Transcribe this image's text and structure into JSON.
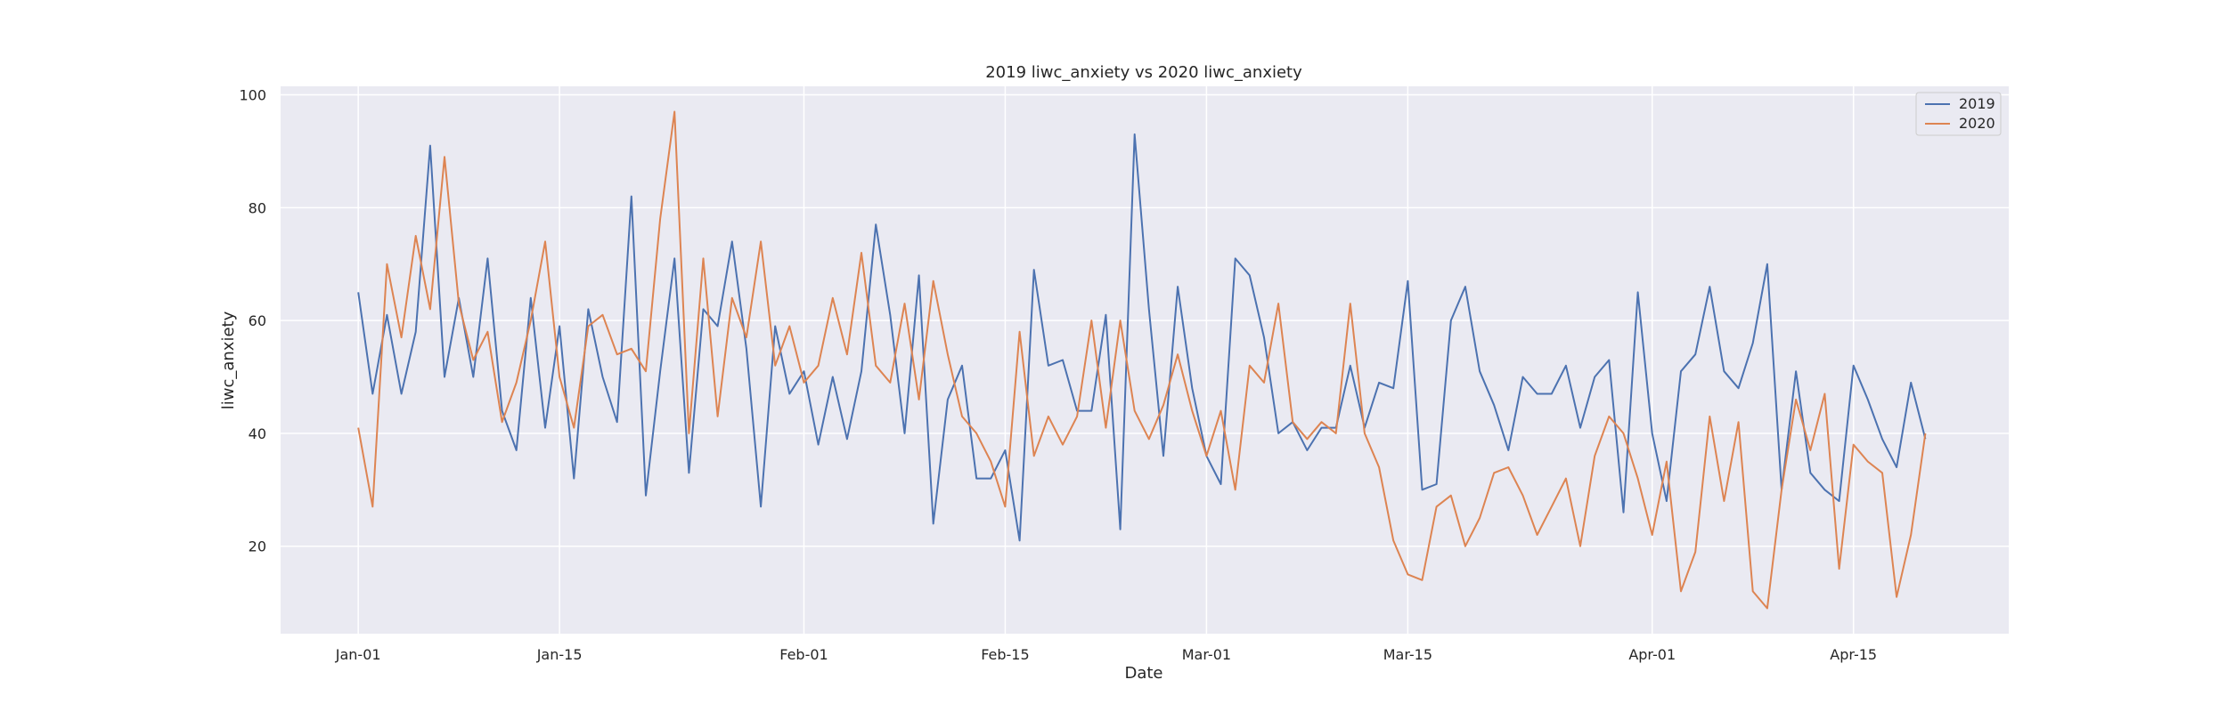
{
  "chart_data": {
    "type": "line",
    "title": "2019 liwc_anxiety vs 2020 liwc_anxiety",
    "xlabel": "Date",
    "ylabel": "liwc_anxiety",
    "x_ticks": [
      "Jan-01",
      "Jan-15",
      "Feb-01",
      "Feb-15",
      "Mar-01",
      "Mar-15",
      "Apr-01",
      "Apr-15"
    ],
    "x_tick_day_index": [
      0,
      14,
      31,
      45,
      59,
      73,
      90,
      104
    ],
    "x_range_day_index": [
      -5.4,
      114.8
    ],
    "y_ticks": [
      20,
      40,
      60,
      80,
      100
    ],
    "ylim": [
      4.5,
      101.5
    ],
    "grid": true,
    "legend_position": "top-right",
    "series": [
      {
        "name": "2019",
        "color": "#4c72b0",
        "values": [
          65,
          47,
          61,
          47,
          58,
          91,
          50,
          64,
          50,
          71,
          44,
          37,
          64,
          41,
          59,
          32,
          62,
          50,
          42,
          82,
          29,
          51,
          71,
          33,
          62,
          59,
          74,
          55,
          27,
          59,
          47,
          51,
          38,
          50,
          39,
          51,
          77,
          61,
          40,
          68,
          24,
          46,
          52,
          32,
          32,
          37,
          21,
          69,
          52,
          53,
          44,
          44,
          61,
          23,
          93,
          62,
          36,
          66,
          48,
          36,
          31,
          71,
          68,
          57,
          40,
          42,
          37,
          41,
          41,
          52,
          41,
          49,
          48,
          67,
          30,
          31,
          60,
          66,
          51,
          45,
          37,
          50,
          47,
          47,
          52,
          41,
          50,
          53,
          26,
          65,
          40,
          28,
          51,
          54,
          66,
          51,
          48,
          56,
          70,
          30,
          51,
          33,
          30,
          28,
          52,
          46,
          39,
          34,
          49,
          39
        ]
      },
      {
        "name": "2020",
        "color": "#dd8452",
        "values": [
          41,
          27,
          70,
          57,
          75,
          62,
          89,
          63,
          53,
          58,
          42,
          49,
          60,
          74,
          50,
          41,
          59,
          61,
          54,
          55,
          51,
          78,
          97,
          40,
          71,
          43,
          64,
          57,
          74,
          52,
          59,
          49,
          52,
          64,
          54,
          72,
          52,
          49,
          63,
          46,
          67,
          54,
          43,
          40,
          35,
          27,
          58,
          36,
          43,
          38,
          43,
          60,
          41,
          60,
          44,
          39,
          45,
          54,
          44,
          36,
          44,
          30,
          52,
          49,
          63,
          42,
          39,
          42,
          40,
          63,
          40,
          34,
          21,
          15,
          14,
          27,
          29,
          20,
          25,
          33,
          34,
          29,
          22,
          27,
          32,
          20,
          36,
          43,
          40,
          32,
          22,
          35,
          12,
          19,
          43,
          28,
          42,
          12,
          9,
          30,
          46,
          37,
          47,
          16,
          38,
          35,
          33,
          11,
          22,
          40
        ]
      }
    ]
  }
}
